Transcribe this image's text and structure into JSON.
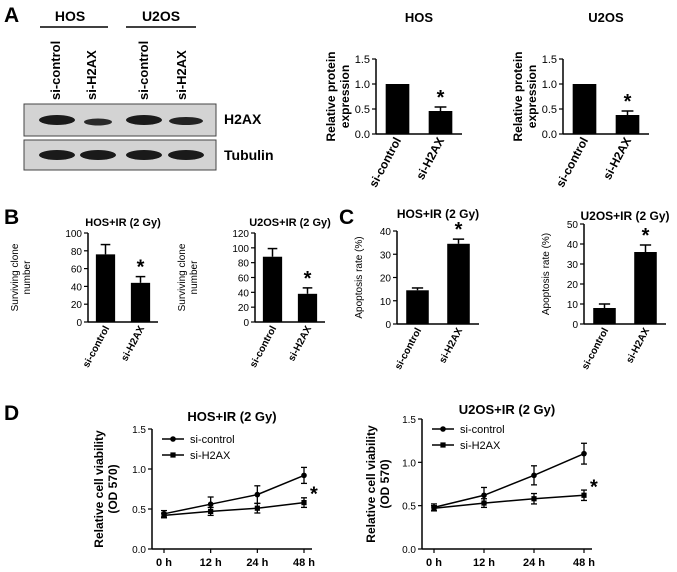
{
  "panel_labels": [
    "A",
    "B",
    "C",
    "D"
  ],
  "blot": {
    "cell_lines": [
      "HOS",
      "U2OS"
    ],
    "lanes": [
      "si-control",
      "si-H2AX",
      "si-control",
      "si-H2AX"
    ],
    "rows": [
      "H2AX",
      "Tubulin"
    ]
  },
  "chart_data": [
    {
      "id": "A-HOS",
      "type": "bar",
      "title": "HOS",
      "categories": [
        "si-control",
        "si-H2AX"
      ],
      "values": [
        1.0,
        0.46
      ],
      "errors": [
        0,
        0.08
      ],
      "significance": [
        "",
        "*"
      ],
      "ylabel": "Relative protein expression",
      "ylim": [
        0,
        1.5
      ],
      "yticks": [
        0.0,
        0.5,
        1.0,
        1.5
      ]
    },
    {
      "id": "A-U2OS",
      "type": "bar",
      "title": "U2OS",
      "categories": [
        "si-control",
        "si-H2AX"
      ],
      "values": [
        1.0,
        0.38
      ],
      "errors": [
        0,
        0.08
      ],
      "significance": [
        "",
        "*"
      ],
      "ylabel": "Relative protein expression",
      "ylim": [
        0,
        1.5
      ],
      "yticks": [
        0.0,
        0.5,
        1.0,
        1.5
      ]
    },
    {
      "id": "B-HOS",
      "type": "bar",
      "title": "HOS+IR (2 Gy)",
      "categories": [
        "si-control",
        "si-H2AX"
      ],
      "values": [
        76,
        44
      ],
      "errors": [
        11,
        7
      ],
      "significance": [
        "",
        "*"
      ],
      "ylabel": "Surviving clone number",
      "ylim": [
        0,
        100
      ],
      "yticks": [
        0,
        20,
        40,
        60,
        80,
        100
      ]
    },
    {
      "id": "B-U2OS",
      "type": "bar",
      "title": "U2OS+IR (2 Gy)",
      "categories": [
        "si-control",
        "si-H2AX"
      ],
      "values": [
        88,
        38
      ],
      "errors": [
        11,
        8
      ],
      "significance": [
        "",
        "*"
      ],
      "ylabel": "Surviving clone number",
      "ylim": [
        0,
        120
      ],
      "yticks": [
        0,
        20,
        40,
        60,
        80,
        100,
        120
      ]
    },
    {
      "id": "C-HOS",
      "type": "bar",
      "title": "HOS+IR (2 Gy)",
      "categories": [
        "si-control",
        "si-H2AX"
      ],
      "values": [
        14.5,
        34.5
      ],
      "errors": [
        1.0,
        2.0
      ],
      "significance": [
        "",
        "*"
      ],
      "ylabel": "Apoptosis rate (%)",
      "ylim": [
        0,
        40
      ],
      "yticks": [
        0,
        10,
        20,
        30,
        40
      ]
    },
    {
      "id": "C-U2OS",
      "type": "bar",
      "title": "U2OS+IR (2 Gy)",
      "categories": [
        "si-control",
        "si-H2AX"
      ],
      "values": [
        8,
        36
      ],
      "errors": [
        2,
        3.5
      ],
      "significance": [
        "",
        "*"
      ],
      "ylabel": "Apoptosis rate (%)",
      "ylim": [
        0,
        50
      ],
      "yticks": [
        0,
        10,
        20,
        30,
        40,
        50
      ]
    },
    {
      "id": "D-HOS",
      "type": "line",
      "title": "HOS+IR (2 Gy)",
      "x": [
        "0 h",
        "12 h",
        "24 h",
        "48 h"
      ],
      "series": [
        {
          "name": "si-control",
          "values": [
            0.44,
            0.56,
            0.68,
            0.92
          ],
          "errors": [
            0.04,
            0.09,
            0.11,
            0.1
          ]
        },
        {
          "name": "si-H2AX",
          "values": [
            0.42,
            0.47,
            0.51,
            0.58
          ],
          "errors": [
            0.03,
            0.05,
            0.06,
            0.06
          ]
        }
      ],
      "significance": "*",
      "ylabel": "Relative cell viability (OD 570)",
      "ylim": [
        0,
        1.5
      ],
      "yticks": [
        0.0,
        0.5,
        1.0,
        1.5
      ],
      "legend": "top-left"
    },
    {
      "id": "D-U2OS",
      "type": "line",
      "title": "U2OS+IR (2 Gy)",
      "x": [
        "0 h",
        "12 h",
        "24 h",
        "48 h"
      ],
      "series": [
        {
          "name": "si-control",
          "values": [
            0.48,
            0.62,
            0.85,
            1.1
          ],
          "errors": [
            0.04,
            0.09,
            0.11,
            0.12
          ]
        },
        {
          "name": "si-H2AX",
          "values": [
            0.47,
            0.53,
            0.58,
            0.62
          ],
          "errors": [
            0.03,
            0.05,
            0.06,
            0.06
          ]
        }
      ],
      "significance": "*",
      "ylabel": "Relative cell viability (OD 570)",
      "ylim": [
        0,
        1.5
      ],
      "yticks": [
        0.0,
        0.5,
        1.0,
        1.5
      ],
      "legend": "top-left"
    }
  ]
}
